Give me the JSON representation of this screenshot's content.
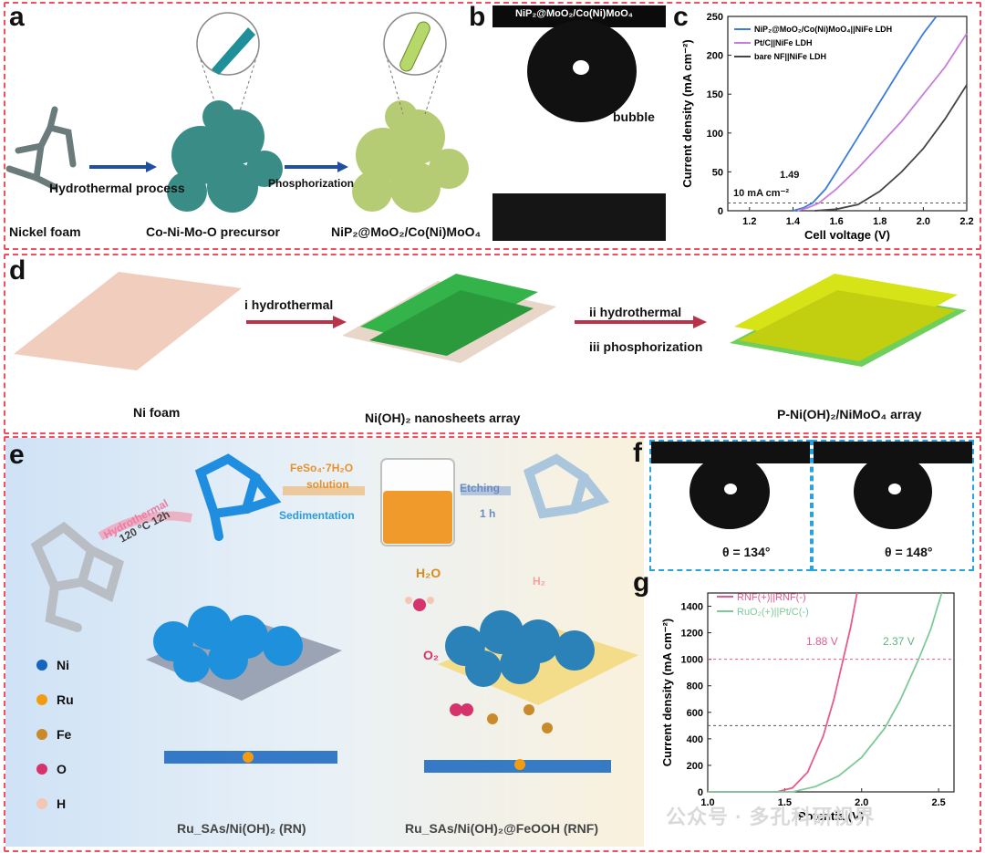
{
  "panels": {
    "a": {
      "letter": "a",
      "labels": {
        "nickel_foam": "Nickel foam",
        "hydrothermal": "Hydrothermal process",
        "precursor": "Co-Ni-Mo-O precursor",
        "phosphorization": "Phosphorization",
        "product": "NiP₂@MoO₂/Co(Ni)MoO₄"
      }
    },
    "b": {
      "letter": "b",
      "top_label": "NiP₂@MoO₂/Co(Ni)MoO₄",
      "bubble": "bubble"
    },
    "c": {
      "letter": "c",
      "annotation_value": "1.49",
      "annotation_ref": "10 mA cm⁻²"
    },
    "d": {
      "letter": "d",
      "labels": {
        "ni_foam": "Ni foam",
        "step1": "i hydrothermal",
        "nanosheets": "Ni(OH)₂ nanosheets array",
        "step2": "ii hydrothermal",
        "step3": "iii phosphorization",
        "product": "P-Ni(OH)₂/NiMoO₄ array"
      }
    },
    "e": {
      "letter": "e",
      "labels": {
        "hydrothermal": "Hydrothermal",
        "temp": "120 °C 12h",
        "feso4": "FeSo₄·7H₂O",
        "solution": "solution",
        "sedimentation": "Sedimentation",
        "etching": "Etching",
        "etch_time": "1 h",
        "h2o": "H₂O",
        "h2": "H₂",
        "o2": "O₂",
        "rn": "Ru_SAs/Ni(OH)₂ (RN)",
        "rnf": "Ru_SAs/Ni(OH)₂@FeOOH (RNF)"
      },
      "legend": [
        {
          "label": "Ni",
          "color": "#1565c0"
        },
        {
          "label": "Ru",
          "color": "#f39c12"
        },
        {
          "label": "Fe",
          "color": "#c98a2b"
        },
        {
          "label": "O",
          "color": "#d6336c"
        },
        {
          "label": "H",
          "color": "#f4c7b5"
        }
      ]
    },
    "f": {
      "letter": "f",
      "angle1": "θ = 134°",
      "angle2": "θ = 148°"
    },
    "g": {
      "letter": "g",
      "ann1": "1.88 V",
      "ann2": "2.37 V"
    }
  },
  "watermark": "公众号 · 多孔科研视界",
  "chart_data": [
    {
      "id": "c",
      "type": "line",
      "xlabel": "Cell voltage (V)",
      "ylabel": "Current density (mA cm⁻²)",
      "xlim": [
        1.1,
        2.2
      ],
      "ylim": [
        0,
        250
      ],
      "xticks": [
        1.2,
        1.4,
        1.6,
        1.8,
        2.0,
        2.2
      ],
      "yticks": [
        0,
        50,
        100,
        150,
        200,
        250
      ],
      "legend_position": "top-right",
      "series": [
        {
          "name": "NiP₂@MoO₂/Co(Ni)MoO₄||NiFe LDH",
          "color": "#3b7ddd",
          "x": [
            1.4,
            1.45,
            1.49,
            1.55,
            1.6,
            1.7,
            1.8,
            1.9,
            2.0,
            2.06
          ],
          "y": [
            0,
            4,
            10,
            28,
            50,
            95,
            140,
            185,
            228,
            250
          ]
        },
        {
          "name": "Pt/C||NiFe LDH",
          "color": "#c77dd9",
          "x": [
            1.42,
            1.47,
            1.52,
            1.6,
            1.7,
            1.8,
            1.9,
            2.0,
            2.1,
            2.2
          ],
          "y": [
            0,
            4,
            10,
            28,
            55,
            85,
            115,
            150,
            185,
            228
          ]
        },
        {
          "name": "bare NF||NiFe LDH",
          "color": "#444444",
          "x": [
            1.5,
            1.6,
            1.7,
            1.8,
            1.9,
            2.0,
            2.1,
            2.2
          ],
          "y": [
            0,
            2,
            8,
            25,
            50,
            80,
            118,
            162
          ]
        }
      ],
      "reference_line": {
        "y": 10,
        "label": "10 mA cm⁻²"
      },
      "annotations": [
        {
          "x": 1.49,
          "y": 10,
          "text": "1.49"
        }
      ]
    },
    {
      "id": "g",
      "type": "line",
      "xlabel": "Potential(V)",
      "ylabel": "Current density (mA cm⁻²)",
      "xlim": [
        1.0,
        2.6
      ],
      "ylim": [
        0,
        1500
      ],
      "xticks": [
        1.0,
        1.5,
        2.0,
        2.5
      ],
      "xtick_labels": [
        "1.0",
        "1.5",
        "2.0",
        "2.5"
      ],
      "yticks": [
        0,
        200,
        400,
        600,
        800,
        1000,
        1200,
        1400
      ],
      "legend_position": "top-left",
      "series": [
        {
          "name": "RNF(+)||RNF(-)",
          "color": "#e75a8d",
          "x": [
            1.0,
            1.45,
            1.55,
            1.65,
            1.75,
            1.82,
            1.88,
            1.93,
            1.97
          ],
          "y": [
            0,
            0,
            30,
            150,
            420,
            700,
            1000,
            1250,
            1500
          ]
        },
        {
          "name": "RuO₂(+)||Pt/C(-)",
          "color": "#7ec99a",
          "x": [
            1.0,
            1.55,
            1.7,
            1.85,
            2.0,
            2.15,
            2.25,
            2.37,
            2.45,
            2.52
          ],
          "y": [
            0,
            0,
            40,
            120,
            260,
            480,
            690,
            1000,
            1230,
            1500
          ]
        }
      ],
      "reference_lines": [
        {
          "y": 1000,
          "color": "#e75a8d"
        },
        {
          "y": 500,
          "color": "#555555"
        }
      ],
      "annotations": [
        {
          "x": 1.88,
          "y": 1000,
          "text": "1.88 V"
        },
        {
          "x": 2.37,
          "y": 1000,
          "text": "2.37 V"
        }
      ]
    }
  ]
}
